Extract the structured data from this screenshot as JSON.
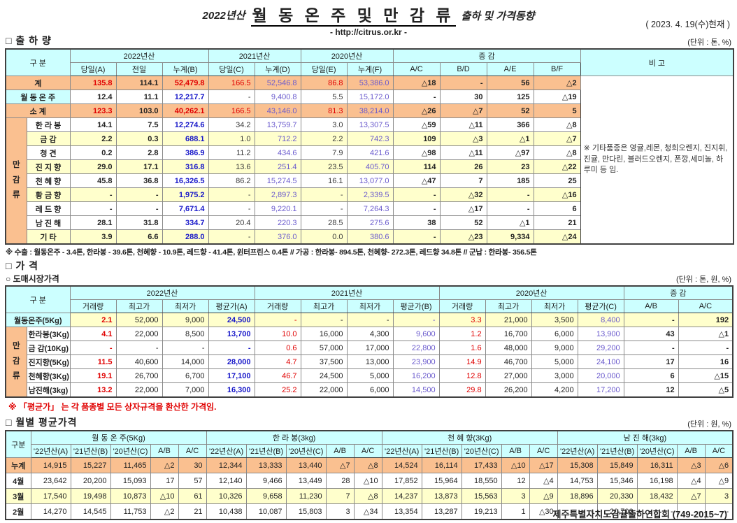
{
  "header": {
    "year_prefix": "2022년산",
    "title_main": "월 동 온 주 및 만 감 류",
    "title_suffix": "출하 및 가격동향",
    "url": "- http://citrus.or.kr -",
    "date": "( 2023.  4.  19(수)현재 )"
  },
  "colors": {
    "accent_red": "#E00000",
    "accent_blue": "#1717C9",
    "accent_purple": "#6A5ACD",
    "header_cyan": "#CCFFFF",
    "total_peach": "#FAC090",
    "alt_yellow": "#FFFFCC"
  },
  "shipment": {
    "section_title": "□ 출 하 량",
    "unit": "(단위 : 톤, %)",
    "corner": "구      분",
    "year_groups": [
      "2022년산",
      "2021년산",
      "2020년산"
    ],
    "change_group": "증        감",
    "remark_head": "비 고",
    "columns": [
      "당일(A)",
      "전일",
      "누계(B)",
      "당일(C)",
      "누계(D)",
      "당일(E)",
      "누계(F)",
      "A/C",
      "B/D",
      "A/E",
      "B/F"
    ],
    "group_label": "만감류",
    "remark": "※ 기타품종은 영귤,레몬, 청희오렌지, 진지휘, 진귤, 만다린, 블러드오렌지, 폰깡,세미놀, 하루미 등 임.",
    "rows": [
      {
        "label": "계",
        "type": "total",
        "full": true,
        "bg": "peach",
        "values": [
          "135.8",
          "114.1",
          "52,479.8",
          "166.5",
          "52,546.8",
          "86.8",
          "53,386.0",
          "△18",
          "-",
          "56",
          "△2"
        ]
      },
      {
        "label": "월 동 온 주",
        "type": "item",
        "full": true,
        "label_bg": "cyan",
        "bg": "white",
        "values": [
          "12.4",
          "11.1",
          "12,217.7",
          "-",
          "9,400.8",
          "5.5",
          "15,172.0",
          "-",
          "30",
          "125",
          "△19"
        ]
      },
      {
        "label": "소      계",
        "type": "total",
        "full": true,
        "bg": "peach",
        "values": [
          "123.3",
          "103.0",
          "40,262.1",
          "166.5",
          "43,146.0",
          "81.3",
          "38,214.0",
          "△26",
          "△7",
          "52",
          "5"
        ]
      },
      {
        "label": "한 라 봉",
        "type": "item",
        "group_start": true,
        "bg": "white",
        "values": [
          "14.1",
          "7.5",
          "12,274.6",
          "34.2",
          "13,759.7",
          "3.0",
          "13,307.5",
          "△59",
          "△11",
          "366",
          "△8"
        ]
      },
      {
        "label": "금      감",
        "type": "item",
        "bg": "yellow",
        "values": [
          "2.2",
          "0.3",
          "688.1",
          "1.0",
          "712.2",
          "2.2",
          "742.3",
          "109",
          "△3",
          "△1",
          "△7"
        ]
      },
      {
        "label": "청      견",
        "type": "item",
        "bg": "white",
        "values": [
          "0.2",
          "2.8",
          "386.9",
          "11.2",
          "434.6",
          "7.9",
          "421.6",
          "△98",
          "△11",
          "△97",
          "△8"
        ]
      },
      {
        "label": "진 지 향",
        "type": "item",
        "bg": "yellow",
        "values": [
          "29.0",
          "17.1",
          "316.8",
          "13.6",
          "251.4",
          "23.5",
          "405.70",
          "114",
          "26",
          "23",
          "△22"
        ]
      },
      {
        "label": "천 혜 향",
        "type": "item",
        "bg": "white",
        "values": [
          "45.8",
          "36.8",
          "16,326.5",
          "86.2",
          "15,274.5",
          "16.1",
          "13,077.0",
          "△47",
          "7",
          "185",
          "25"
        ]
      },
      {
        "label": "황 금 향",
        "type": "item",
        "bg": "yellow",
        "values": [
          "-",
          "-",
          "1,975.2",
          "-",
          "2,897.3",
          "-",
          "2,339.5",
          "-",
          "△32",
          "-",
          "△16"
        ]
      },
      {
        "label": "레 드 향",
        "type": "item",
        "bg": "white",
        "values": [
          "-",
          "-",
          "7,671.4",
          "-",
          "9,220.1",
          "-",
          "7,264.3",
          "-",
          "△17",
          "-",
          "6"
        ]
      },
      {
        "label": "남 진 해",
        "type": "item",
        "bg": "white",
        "values": [
          "28.1",
          "31.8",
          "334.7",
          "20.4",
          "220.3",
          "28.5",
          "275.6",
          "38",
          "52",
          "△1",
          "21"
        ]
      },
      {
        "label": "기      타",
        "type": "item",
        "bg": "yellow",
        "values": [
          "3.9",
          "6.6",
          "288.0",
          "-",
          "376.0",
          "0.0",
          "380.6",
          "-",
          "△23",
          "9,334",
          "△24"
        ]
      }
    ],
    "footnote": "※ 수출 : 월동온주 - 3.4톤, 한라봉 - 39.6톤, 천혜향 - 10.9톤, 레드향 - 41.4톤, 윈터프린스 0.4톤 //  가공  :  한라봉- 894.5톤, 천혜향- 272.3톤, 레드향 34.8톤  //  군납 : 한라봉- 356.5톤"
  },
  "price": {
    "section_title": "□ 가      격",
    "sub_title": "○ 도매시장가격",
    "unit": "(단위 : 톤, 원, %)",
    "corner": "구      분",
    "year_groups": [
      "2022년산",
      "2021년산",
      "2020년산"
    ],
    "change_group": "증    감",
    "columns": [
      "거래량",
      "최고가",
      "최저가",
      "평균가(A)",
      "거래량",
      "최고가",
      "최저가",
      "평균가(B)",
      "거래량",
      "최고가",
      "최저가",
      "평균가(C)",
      "A/B",
      "A/C"
    ],
    "group_label": "만감류",
    "rows": [
      {
        "label": "월동온주(5Kg)",
        "full": true,
        "label_bg": "cyan",
        "bg": "yellow",
        "values": [
          "2.1",
          "52,000",
          "9,000",
          "24,500",
          "-",
          "-",
          "-",
          "-",
          "3.3",
          "21,000",
          "3,500",
          "8,400",
          "-",
          "192"
        ]
      },
      {
        "label": "한라봉(3Kg)",
        "group_start": true,
        "bg": "white",
        "values": [
          "4.1",
          "22,000",
          "8,500",
          "13,700",
          "10.0",
          "16,000",
          "4,300",
          "9,600",
          "1.2",
          "16,700",
          "6,000",
          "13,900",
          "43",
          "△1"
        ]
      },
      {
        "label": "금 감(10Kg)",
        "bg": "white",
        "values": [
          "-",
          "-",
          "-",
          "-",
          "0.6",
          "57,000",
          "17,000",
          "22,800",
          "1.6",
          "48,000",
          "9,000",
          "29,200",
          "-",
          "-"
        ]
      },
      {
        "label": "진지향(5Kg)",
        "bg": "white",
        "values": [
          "11.5",
          "40,600",
          "14,000",
          "28,000",
          "4.7",
          "37,500",
          "13,000",
          "23,900",
          "14.9",
          "46,700",
          "5,000",
          "24,100",
          "17",
          "16"
        ]
      },
      {
        "label": "천혜향(3Kg)",
        "bg": "white",
        "values": [
          "19.1",
          "26,700",
          "6,700",
          "17,100",
          "46.7",
          "24,500",
          "5,000",
          "16,200",
          "12.8",
          "27,000",
          "3,000",
          "20,000",
          "6",
          "△15"
        ]
      },
      {
        "label": "남진해(3kg)",
        "bg": "white",
        "values": [
          "13.2",
          "22,000",
          "7,000",
          "16,300",
          "25.2",
          "22,000",
          "6,000",
          "14,500",
          "29.8",
          "26,200",
          "4,200",
          "17,200",
          "12",
          "△5"
        ]
      }
    ],
    "note": "※ 「평균가」 는 각 품종별 모든 상자규격을 환산한 가격임."
  },
  "monthly": {
    "section_title": "□ 월별 평균가격",
    "unit": "(단위 : 원, %)",
    "corner": "구분",
    "groups": [
      "월 동 온 주(5Kg)",
      "한 라 봉(3kg)",
      "천 혜 향(3Kg)",
      "남 진 해(3kg)"
    ],
    "sub_columns": [
      "'22년산(A)",
      "'21년산(B)",
      "'20년산(C)",
      "A/B",
      "A/C"
    ],
    "rows": [
      {
        "label": "누계",
        "bg": "peach",
        "values": [
          "14,915",
          "15,227",
          "11,465",
          "△2",
          "30",
          "12,344",
          "13,333",
          "13,440",
          "△7",
          "△8",
          "14,524",
          "16,114",
          "17,433",
          "△10",
          "△17",
          "15,308",
          "15,849",
          "16,311",
          "△3",
          "△6"
        ]
      },
      {
        "label": "4월",
        "bg": "white",
        "values": [
          "23,642",
          "20,200",
          "15,093",
          "17",
          "57",
          "12,140",
          "9,466",
          "13,449",
          "28",
          "△10",
          "17,852",
          "15,964",
          "18,550",
          "12",
          "△4",
          "14,753",
          "15,346",
          "16,198",
          "△4",
          "△9"
        ]
      },
      {
        "label": "3월",
        "bg": "yellow",
        "values": [
          "17,540",
          "19,498",
          "10,873",
          "△10",
          "61",
          "10,326",
          "9,658",
          "11,230",
          "7",
          "△8",
          "14,237",
          "13,873",
          "15,563",
          "3",
          "△9",
          "18,896",
          "20,330",
          "18,432",
          "△7",
          "3"
        ]
      },
      {
        "label": "2월",
        "bg": "white",
        "values": [
          "14,270",
          "14,545",
          "11,753",
          "△2",
          "21",
          "10,438",
          "10,087",
          "15,803",
          "3",
          "△34",
          "13,354",
          "13,287",
          "19,213",
          "1",
          "△30",
          "-",
          "20,700",
          "-",
          "-",
          "-"
        ]
      }
    ]
  },
  "footer": "제주특별자치도감귤출하연합회 (749-2015~7)"
}
